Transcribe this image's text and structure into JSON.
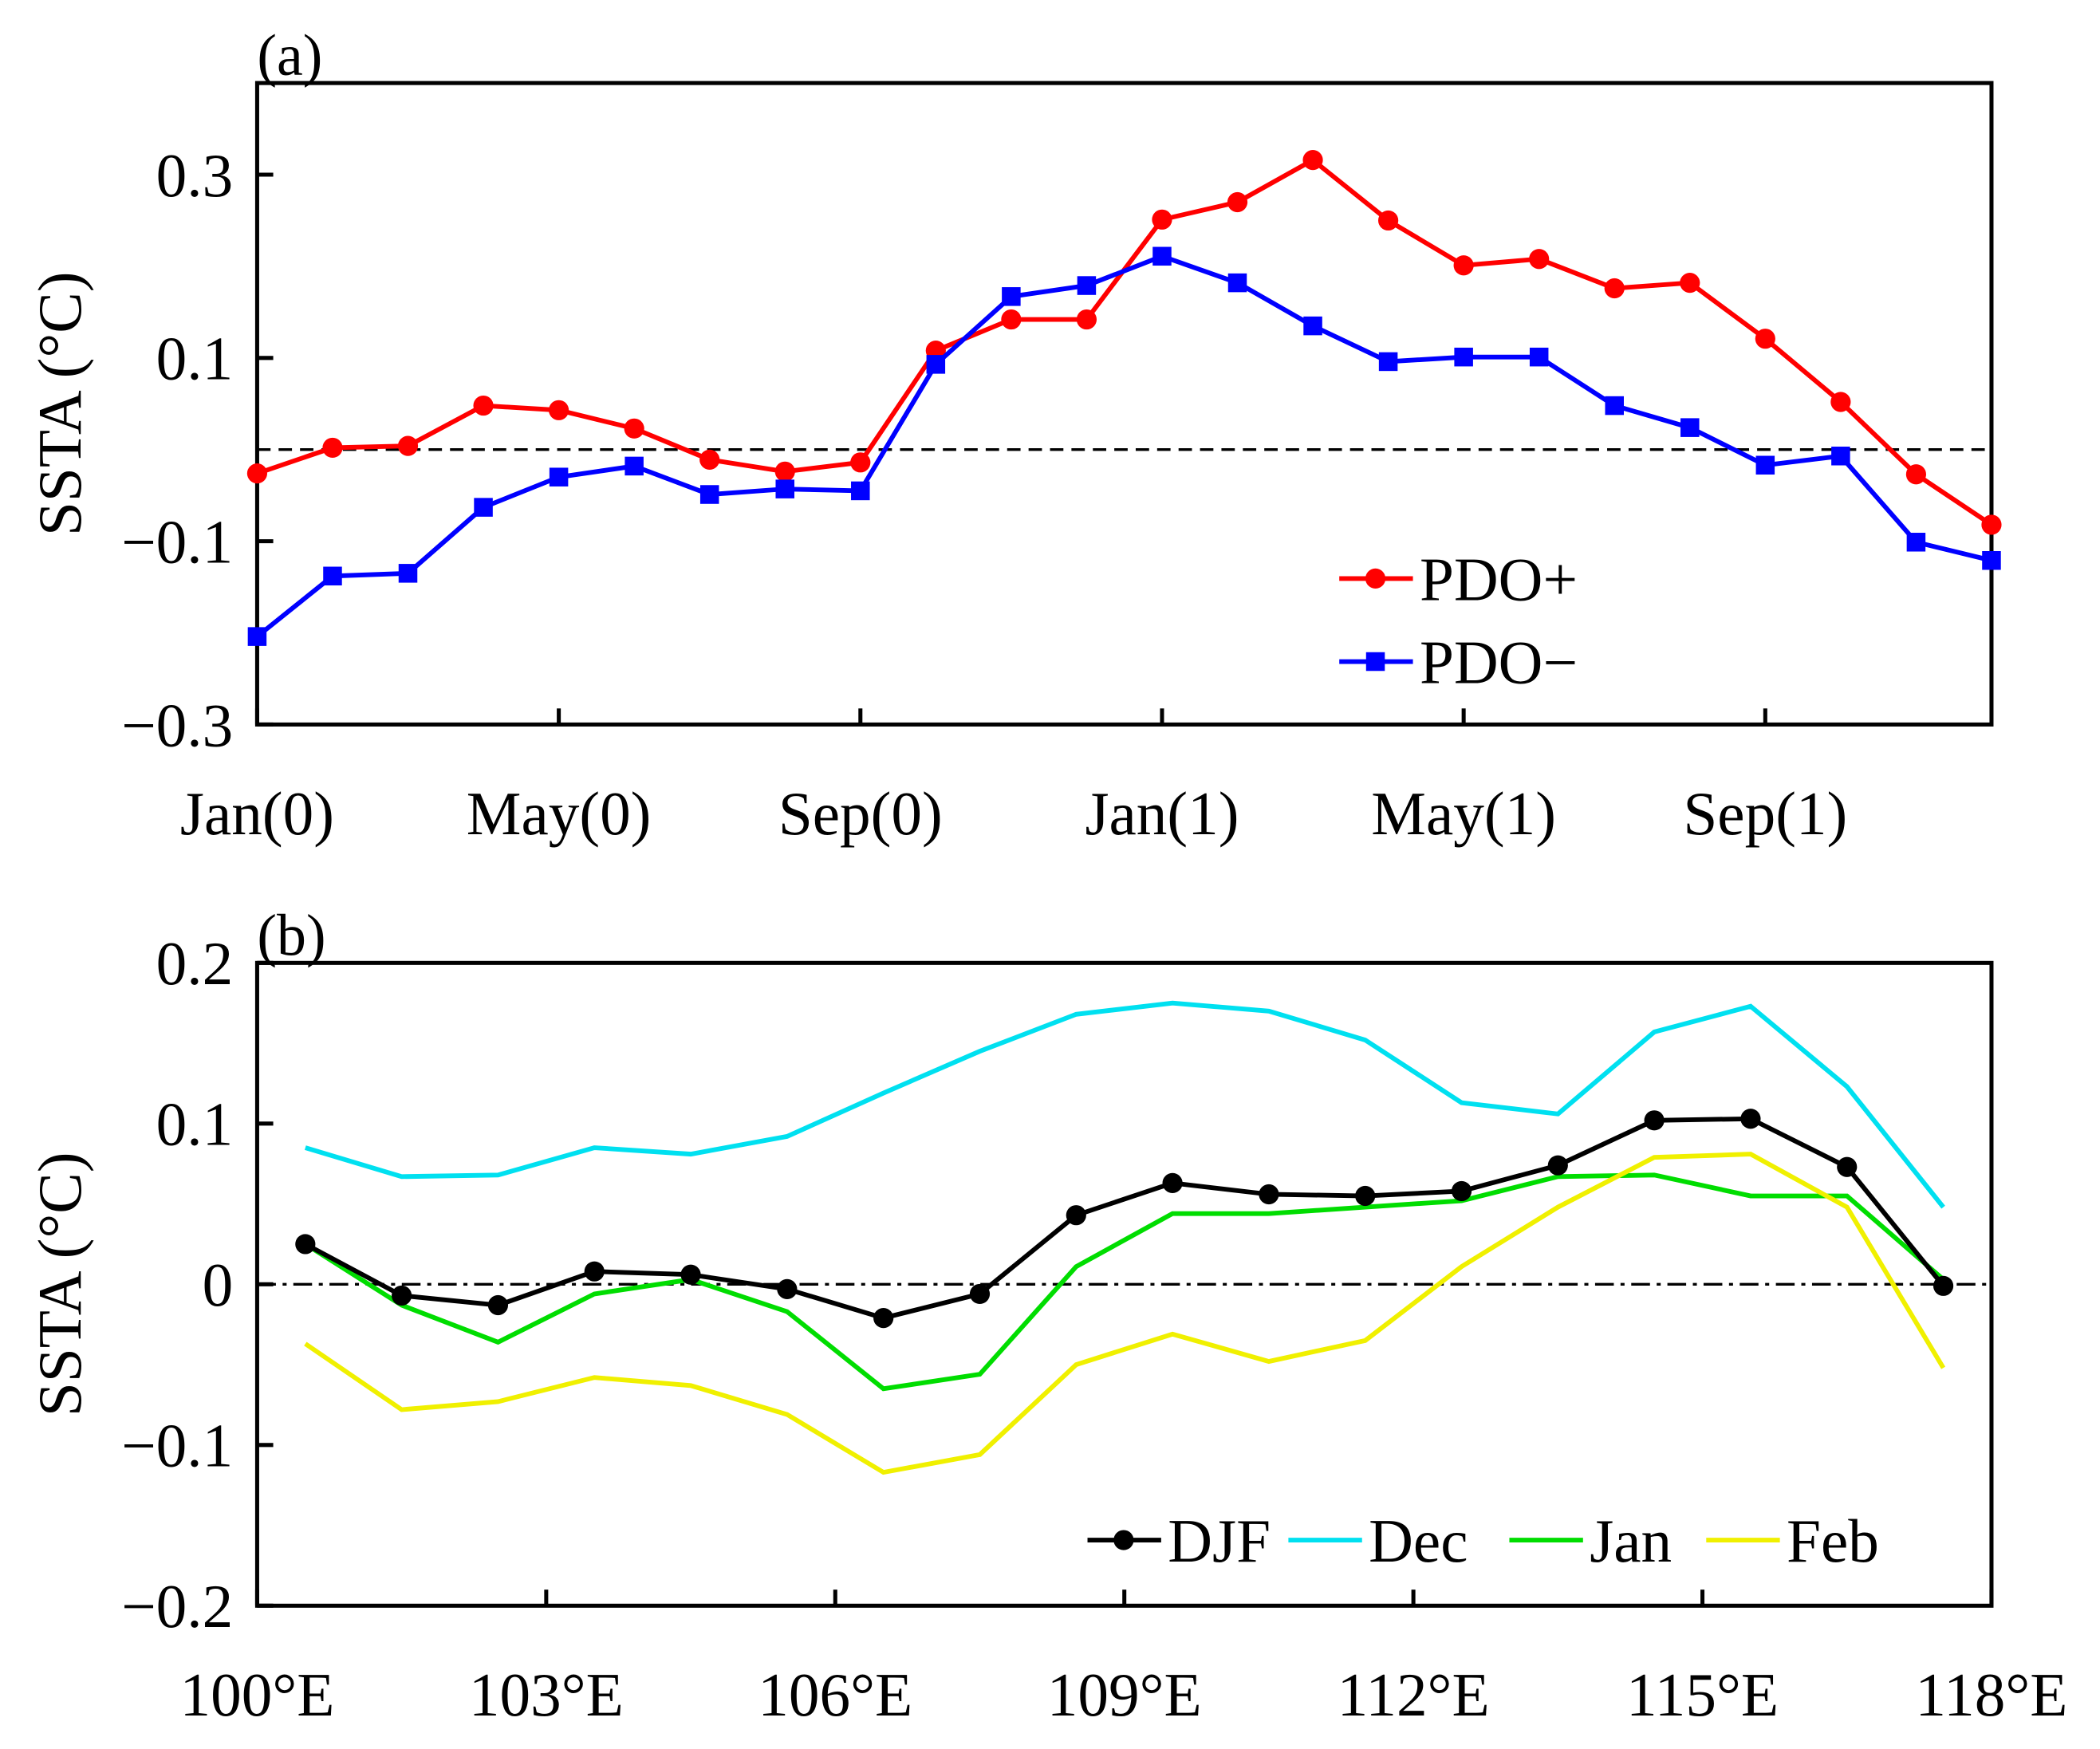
{
  "chart_data": [
    {
      "panel_label": "(a)",
      "type": "line",
      "ylabel": "SSTA (°C)",
      "x": [
        0,
        1,
        2,
        3,
        4,
        5,
        6,
        7,
        8,
        9,
        10,
        11,
        12,
        13,
        14,
        15,
        16,
        17,
        18,
        19,
        20,
        21,
        22,
        23
      ],
      "xticks": [
        0,
        4,
        8,
        12,
        16,
        20
      ],
      "xtick_labels": [
        "Jan(0)",
        "May(0)",
        "Sep(0)",
        "Jan(1)",
        "May(1)",
        "Sep(1)"
      ],
      "xlim": [
        0,
        23
      ],
      "ylim": [
        -0.3,
        0.4
      ],
      "yticks": [
        0.3,
        0.1,
        -0.1,
        -0.3
      ],
      "ytick_labels": [
        "0.3",
        "0.1",
        "−0.1",
        "−0.3"
      ],
      "zero_line": "dashed",
      "legend_position": "bottom-right",
      "series": [
        {
          "name": "PDO+",
          "color": "#ff0000",
          "marker": "circle",
          "values": [
            -0.026,
            0.002,
            0.004,
            0.048,
            0.043,
            0.023,
            -0.011,
            -0.024,
            -0.014,
            0.108,
            0.142,
            0.142,
            0.251,
            0.27,
            0.316,
            0.25,
            0.201,
            0.208,
            0.176,
            0.182,
            0.121,
            0.052,
            -0.027,
            -0.082
          ]
        },
        {
          "name": "PDO−",
          "color": "#0000ff",
          "marker": "square",
          "values": [
            -0.204,
            -0.138,
            -0.135,
            -0.063,
            -0.03,
            -0.018,
            -0.049,
            -0.043,
            -0.045,
            0.093,
            0.167,
            0.179,
            0.211,
            0.182,
            0.135,
            0.096,
            0.101,
            0.101,
            0.048,
            0.024,
            -0.017,
            -0.007,
            -0.101,
            -0.121
          ]
        }
      ]
    },
    {
      "panel_label": "(b)",
      "type": "line",
      "ylabel": "SSTA (°C)",
      "x": [
        100.5,
        101.5,
        102.5,
        103.5,
        104.5,
        105.5,
        106.5,
        107.5,
        108.5,
        109.5,
        110.5,
        111.5,
        112.5,
        113.5,
        114.5,
        115.5,
        116.5,
        117.5
      ],
      "xticks": [
        100,
        103,
        106,
        109,
        112,
        115,
        118
      ],
      "xtick_labels": [
        "100°E",
        "103°E",
        "106°E",
        "109°E",
        "112°E",
        "115°E",
        "118°E"
      ],
      "xlim": [
        100,
        118
      ],
      "ylim": [
        -0.2,
        0.2
      ],
      "yticks": [
        0.2,
        0.1,
        0,
        -0.1,
        -0.2
      ],
      "ytick_labels": [
        "0.2",
        "0.1",
        "0",
        "−0.1",
        "−0.2"
      ],
      "zero_line": "dash-dot",
      "legend_position": "bottom-right",
      "series": [
        {
          "name": "DJF",
          "color": "#000000",
          "marker": "circle",
          "values": [
            0.025,
            -0.007,
            -0.013,
            0.008,
            0.006,
            -0.003,
            -0.021,
            -0.006,
            0.043,
            0.063,
            0.056,
            0.055,
            0.058,
            0.074,
            0.102,
            0.103,
            0.073,
            -0.001
          ]
        },
        {
          "name": "Dec",
          "color": "#00e0f0",
          "marker": "none",
          "values": [
            0.085,
            0.067,
            0.068,
            0.085,
            0.081,
            0.092,
            0.119,
            0.145,
            0.168,
            0.175,
            0.17,
            0.152,
            0.113,
            0.106,
            0.157,
            0.173,
            0.123,
            0.048
          ]
        },
        {
          "name": "Jan",
          "color": "#00dd00",
          "marker": "none",
          "values": [
            0.025,
            -0.013,
            -0.036,
            -0.006,
            0.003,
            -0.017,
            -0.065,
            -0.056,
            0.011,
            0.044,
            0.044,
            0.048,
            0.052,
            0.067,
            0.068,
            0.055,
            0.055,
            0.003
          ]
        },
        {
          "name": "Feb",
          "color": "#f0f000",
          "marker": "none",
          "values": [
            -0.037,
            -0.078,
            -0.073,
            -0.058,
            -0.063,
            -0.081,
            -0.117,
            -0.106,
            -0.05,
            -0.031,
            -0.048,
            -0.035,
            0.011,
            0.048,
            0.079,
            0.081,
            0.048,
            -0.052
          ]
        }
      ]
    }
  ]
}
